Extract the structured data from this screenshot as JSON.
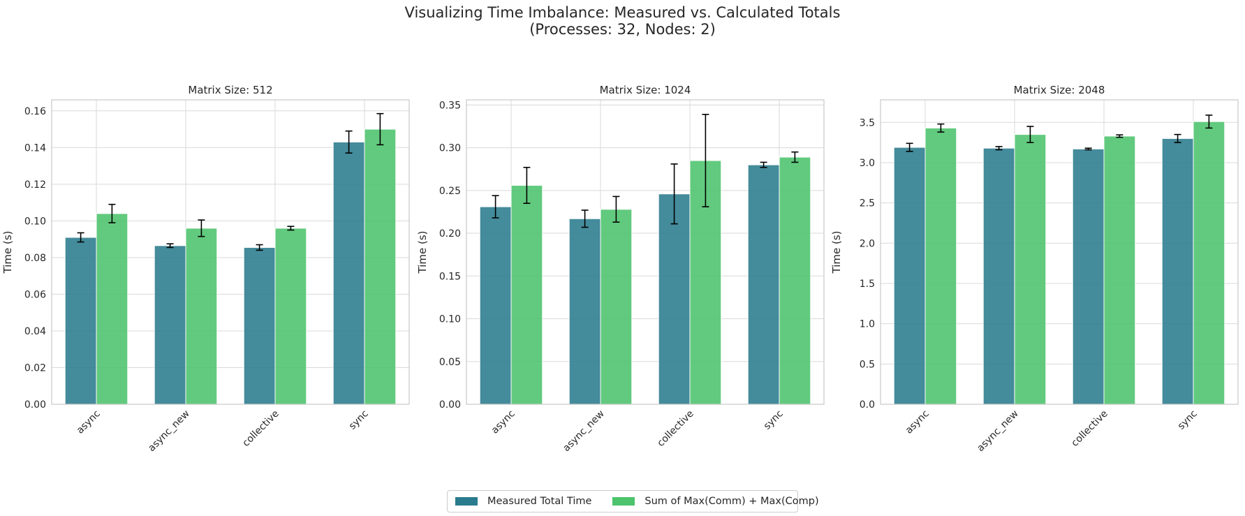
{
  "title": {
    "line1": "Visualizing Time Imbalance: Measured vs. Calculated Totals",
    "line2": "(Processes: 32, Nodes: 2)"
  },
  "colors": {
    "measured": "#2A7B8D",
    "sum": "#4CC36C",
    "grid": "#d9d9d9",
    "spine": "#cccccc",
    "error": "#000000"
  },
  "legend": {
    "items": [
      {
        "label": "Measured Total Time",
        "color": "#2A7B8D"
      },
      {
        "label": "Sum of Max(Comm) + Max(Comp)",
        "color": "#4CC36C"
      }
    ]
  },
  "chart_data": [
    {
      "type": "bar",
      "title": "Matrix Size: 512",
      "ylabel": "Time (s)",
      "xlabel": "",
      "categories": [
        "async",
        "async_new",
        "collective",
        "sync"
      ],
      "ylim": [
        0,
        0.166
      ],
      "yticks": [
        0.0,
        0.02,
        0.04,
        0.06,
        0.08,
        0.1,
        0.12,
        0.14,
        0.16
      ],
      "tick_decimals": 2,
      "grid": true,
      "series": [
        {
          "name": "Measured Total Time",
          "values": [
            0.091,
            0.0865,
            0.0855,
            0.143
          ],
          "errors": [
            0.0025,
            0.001,
            0.0015,
            0.006
          ]
        },
        {
          "name": "Sum of Max(Comm) + Max(Comp)",
          "values": [
            0.104,
            0.096,
            0.096,
            0.15
          ],
          "errors": [
            0.005,
            0.0045,
            0.001,
            0.0085
          ]
        }
      ]
    },
    {
      "type": "bar",
      "title": "Matrix Size: 1024",
      "ylabel": "Time (s)",
      "xlabel": "",
      "categories": [
        "async",
        "async_new",
        "collective",
        "sync"
      ],
      "ylim": [
        0,
        0.356
      ],
      "yticks": [
        0.0,
        0.05,
        0.1,
        0.15,
        0.2,
        0.25,
        0.3,
        0.35
      ],
      "tick_decimals": 2,
      "grid": true,
      "series": [
        {
          "name": "Measured Total Time",
          "values": [
            0.231,
            0.217,
            0.246,
            0.28
          ],
          "errors": [
            0.013,
            0.01,
            0.035,
            0.003
          ]
        },
        {
          "name": "Sum of Max(Comm) + Max(Comp)",
          "values": [
            0.256,
            0.228,
            0.285,
            0.289
          ],
          "errors": [
            0.021,
            0.015,
            0.054,
            0.006
          ]
        }
      ]
    },
    {
      "type": "bar",
      "title": "Matrix Size: 2048",
      "ylabel": "Time (s)",
      "xlabel": "",
      "categories": [
        "async",
        "async_new",
        "collective",
        "sync"
      ],
      "ylim": [
        0,
        3.78
      ],
      "yticks": [
        0.0,
        0.5,
        1.0,
        1.5,
        2.0,
        2.5,
        3.0,
        3.5
      ],
      "tick_decimals": 1,
      "grid": true,
      "series": [
        {
          "name": "Measured Total Time",
          "values": [
            3.19,
            3.18,
            3.17,
            3.3
          ],
          "errors": [
            0.05,
            0.02,
            0.01,
            0.05
          ]
        },
        {
          "name": "Sum of Max(Comm) + Max(Comp)",
          "values": [
            3.43,
            3.35,
            3.33,
            3.51
          ],
          "errors": [
            0.05,
            0.1,
            0.015,
            0.08
          ]
        }
      ]
    }
  ]
}
